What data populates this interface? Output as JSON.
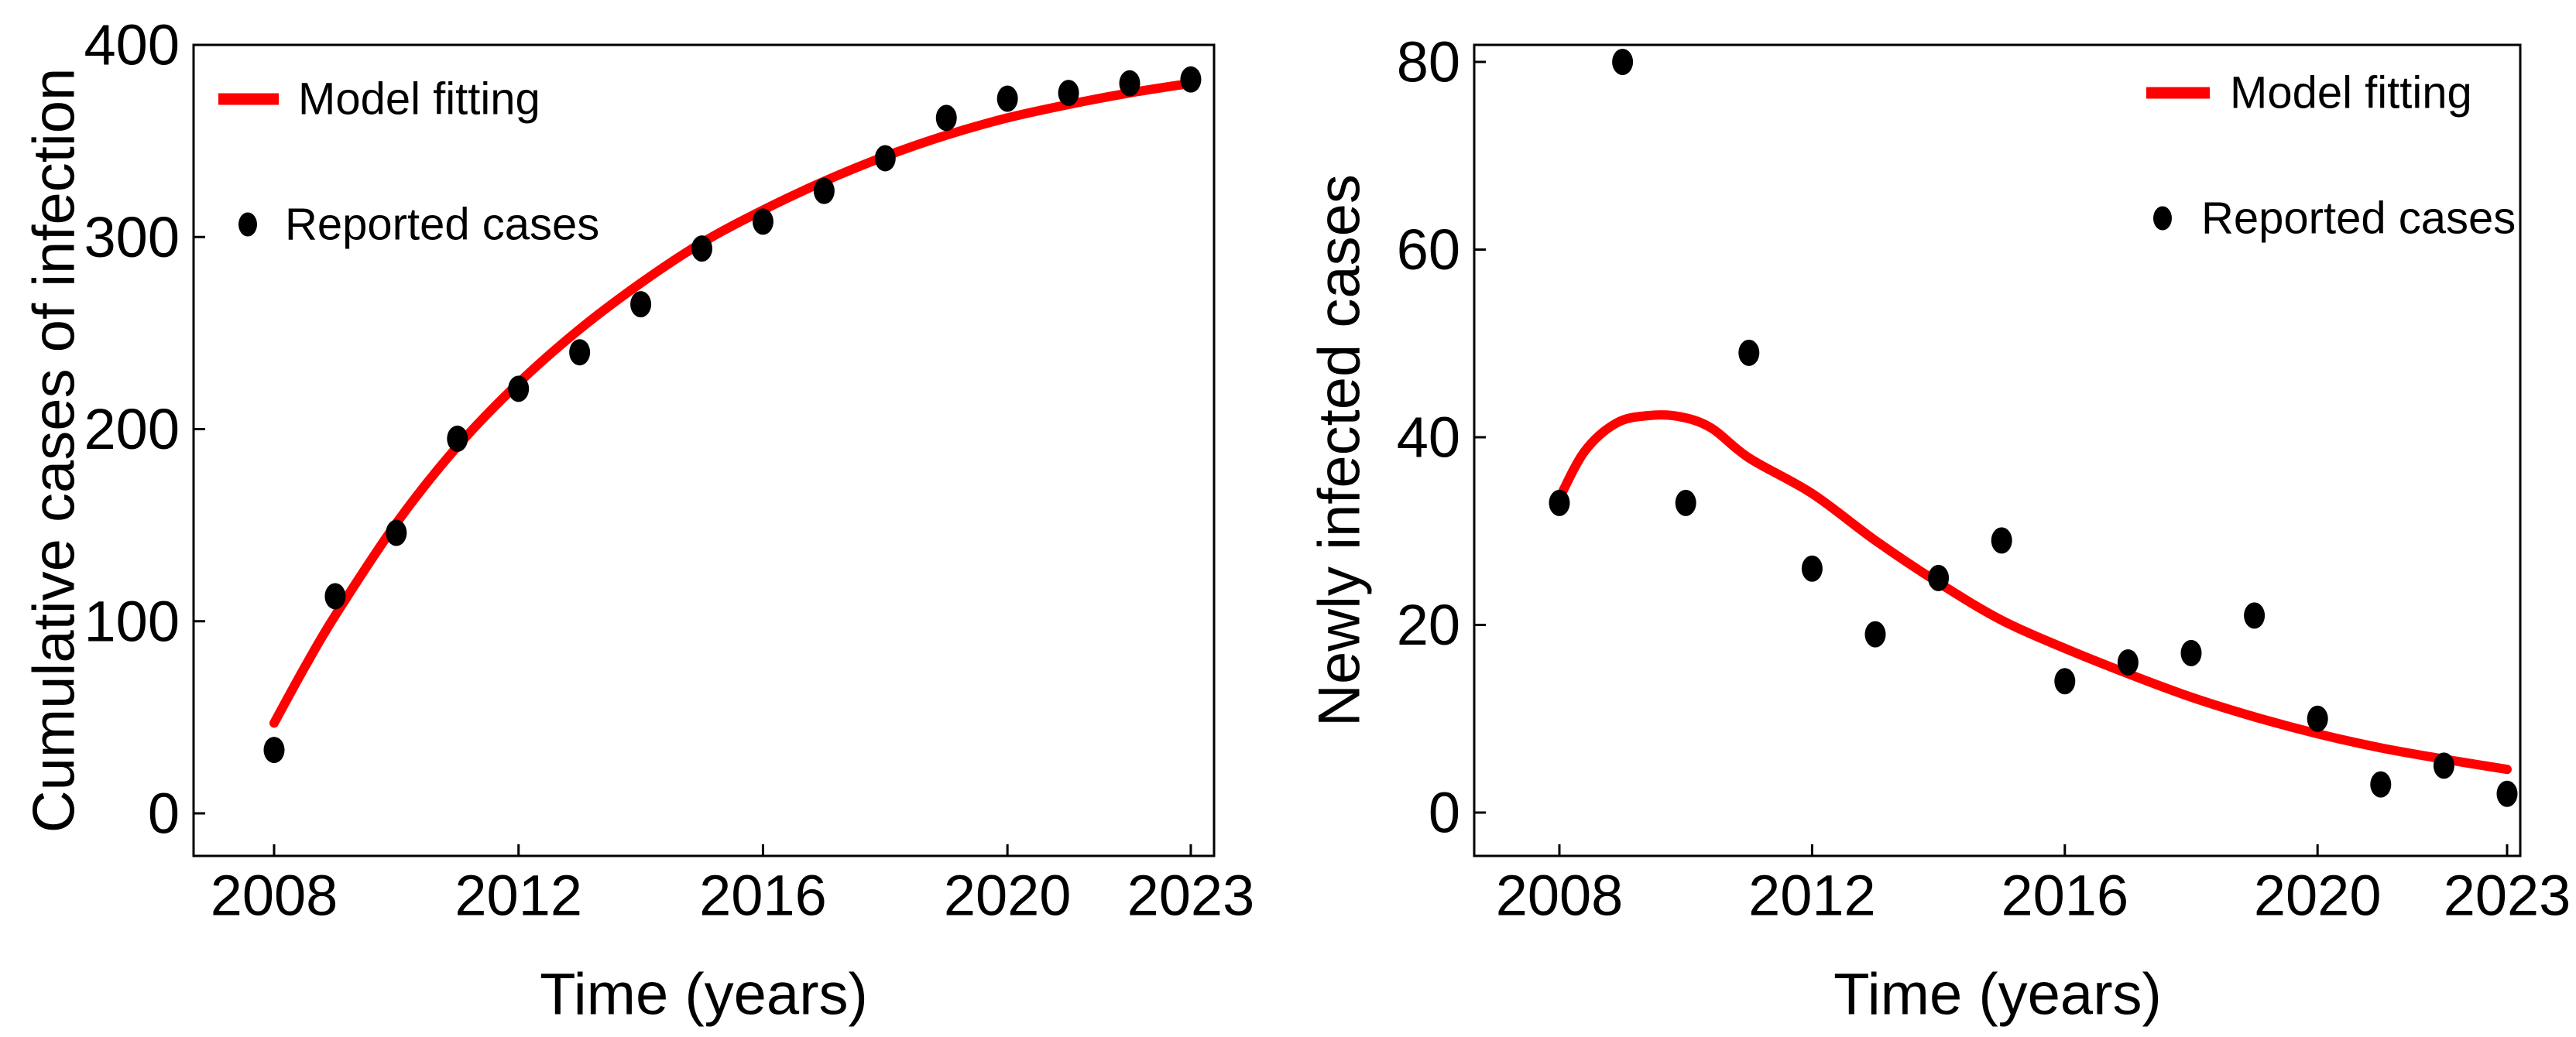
{
  "figure": {
    "background": "#ffffff",
    "line_color": "#ff0000",
    "dot_color": "#000000",
    "axis_color": "#000000"
  },
  "chart_data": [
    {
      "type": "scatter",
      "panel": "left",
      "title": "",
      "xlabel": "Time (years)",
      "ylabel": "Cumulative cases of infection",
      "xlim": [
        2006.7,
        2023.4
      ],
      "ylim": [
        -22,
        400
      ],
      "xticks": [
        2008,
        2012,
        2016,
        2020,
        2023
      ],
      "yticks": [
        0,
        100,
        200,
        300,
        400
      ],
      "grid": false,
      "legend_position": "upper-left",
      "legend": [
        "Model fitting",
        "Reported cases"
      ],
      "series": [
        {
          "name": "Reported cases",
          "type": "scatter",
          "color": "#000000",
          "x": [
            2008,
            2009,
            2010,
            2011,
            2012,
            2013,
            2014,
            2015,
            2016,
            2017,
            2018,
            2019,
            2020,
            2021,
            2022,
            2023
          ],
          "y": [
            33,
            113,
            146,
            195,
            221,
            240,
            265,
            294,
            308,
            324,
            341,
            362,
            372,
            375,
            380,
            382
          ]
        },
        {
          "name": "Model fitting",
          "type": "line",
          "color": "#ff0000",
          "x": [
            2008,
            2008.5,
            2009,
            2010,
            2011,
            2012,
            2013,
            2014,
            2015,
            2016,
            2017,
            2018,
            2019,
            2020,
            2021,
            2022,
            2023
          ],
          "y": [
            47,
            76,
            103,
            151,
            191,
            224,
            252,
            276,
            297,
            314,
            329,
            342,
            353,
            362,
            369,
            375,
            380
          ]
        }
      ]
    },
    {
      "type": "scatter",
      "panel": "right",
      "title": "",
      "xlabel": "Time (years)",
      "ylabel": "Newly infected cases",
      "xlim": [
        2006.65,
        2023.2
      ],
      "ylim": [
        -4.6,
        81.8
      ],
      "xticks": [
        2008,
        2012,
        2016,
        2020,
        2023
      ],
      "yticks": [
        0,
        20,
        40,
        60,
        80
      ],
      "grid": false,
      "legend_position": "upper-right",
      "legend": [
        "Model fitting",
        "Reported cases"
      ],
      "series": [
        {
          "name": "Reported cases",
          "type": "scatter",
          "color": "#000000",
          "x": [
            2008,
            2009,
            2010,
            2011,
            2012,
            2013,
            2014,
            2015,
            2016,
            2017,
            2018,
            2019,
            2020,
            2021,
            2022,
            2023
          ],
          "y": [
            33,
            80,
            33,
            49,
            26,
            19,
            25,
            29,
            14,
            16,
            17,
            21,
            10,
            3,
            5,
            2
          ]
        },
        {
          "name": "Model fitting",
          "type": "line",
          "color": "#ff0000",
          "x": [
            2008,
            2008.4,
            2008.9,
            2009.4,
            2009.9,
            2010.4,
            2011,
            2012,
            2013,
            2014,
            2015,
            2016,
            2017,
            2018,
            2019,
            2020,
            2021,
            2022,
            2023
          ],
          "y": [
            33.5,
            38.5,
            41.5,
            42.3,
            42.2,
            41.0,
            37.8,
            34.0,
            29.0,
            24.5,
            20.5,
            17.5,
            14.8,
            12.3,
            10.2,
            8.4,
            6.9,
            5.7,
            4.6
          ]
        }
      ]
    }
  ]
}
